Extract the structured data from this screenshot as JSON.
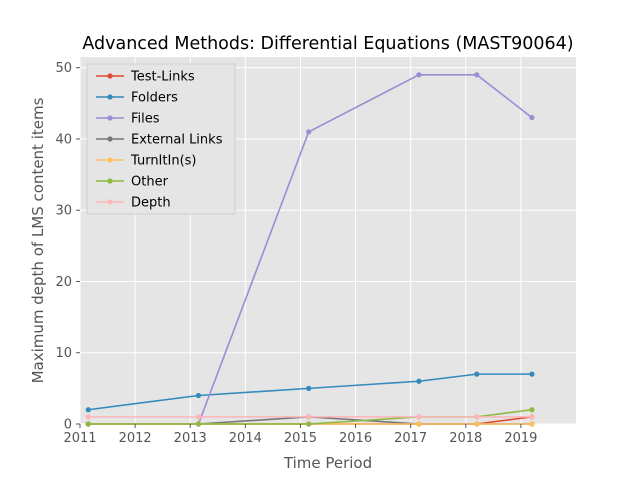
{
  "chart_data": {
    "type": "line",
    "title": "Advanced Methods: Differential Equations (MAST90064)",
    "xlabel": "Time Period",
    "ylabel": "Maximum depth of LMS content items",
    "xlim": [
      2011,
      2020
    ],
    "ylim": [
      0,
      51.5
    ],
    "x_ticks": [
      2011,
      2012,
      2013,
      2014,
      2015,
      2016,
      2017,
      2018,
      2019
    ],
    "y_ticks": [
      0,
      10,
      20,
      30,
      40,
      50
    ],
    "x": [
      2011.15,
      2013.15,
      2015.15,
      2017.15,
      2018.2,
      2019.2
    ],
    "grid": true,
    "legend_position": "upper-left",
    "series": [
      {
        "name": "Test-Links",
        "color": "#E24A33",
        "values": [
          0,
          0,
          0,
          0,
          0,
          1
        ]
      },
      {
        "name": "Folders",
        "color": "#348ABD",
        "values": [
          2,
          4,
          5,
          6,
          7,
          7
        ]
      },
      {
        "name": "Files",
        "color": "#988ED5",
        "values": [
          0,
          0,
          41,
          49,
          49,
          43
        ]
      },
      {
        "name": "External Links",
        "color": "#777777",
        "values": [
          0,
          0,
          1,
          0,
          0,
          0
        ]
      },
      {
        "name": "TurnItIn(s)",
        "color": "#FBC15E",
        "values": [
          0,
          0,
          0,
          0,
          0,
          0
        ]
      },
      {
        "name": "Other",
        "color": "#8EBA42",
        "values": [
          0,
          0,
          0,
          1,
          1,
          2
        ]
      },
      {
        "name": "Depth",
        "color": "#FFB5B8",
        "values": [
          1,
          1,
          1,
          1,
          1,
          1
        ]
      }
    ]
  }
}
